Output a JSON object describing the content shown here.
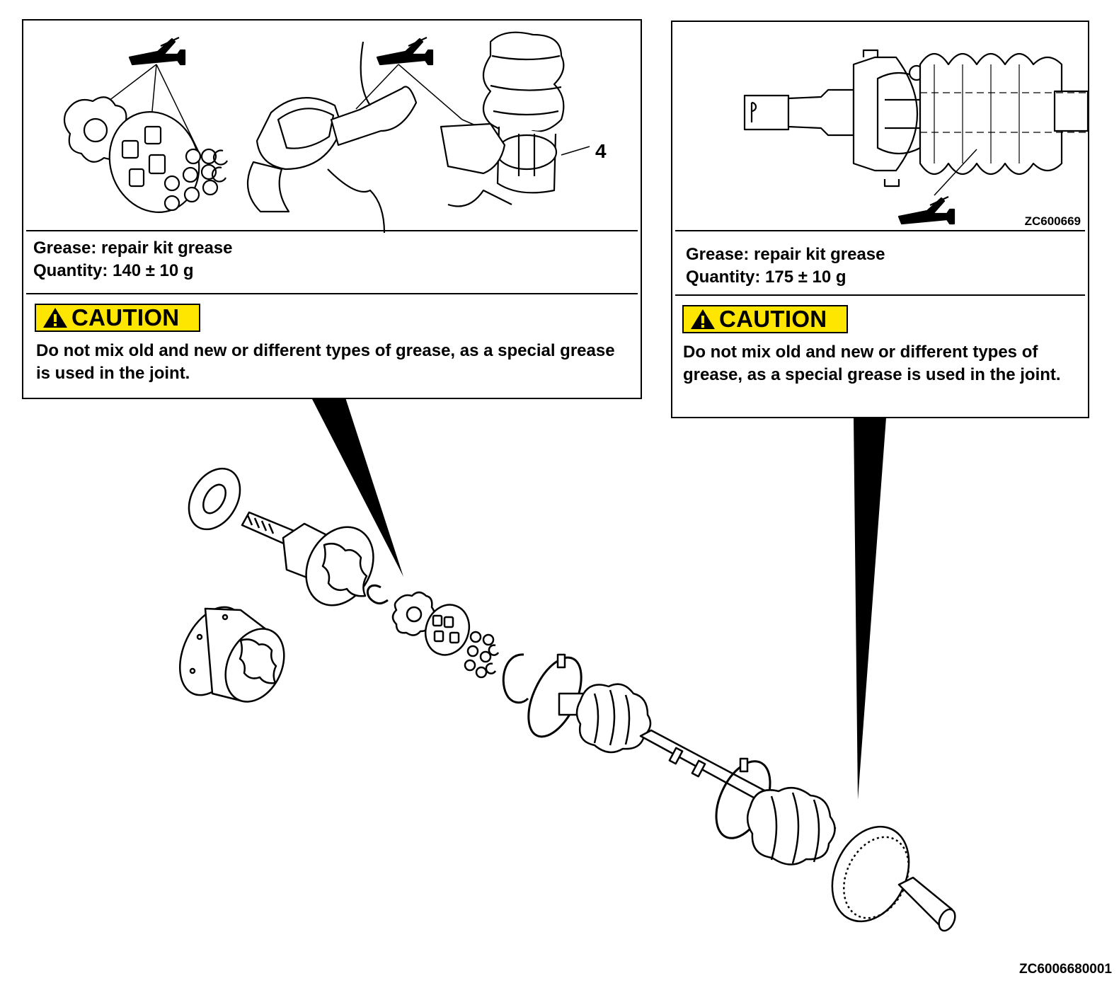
{
  "left_panel": {
    "grease_line": "Grease: repair kit grease",
    "quantity_line": "Quantity: 140 ± 10 g",
    "caution_label": "CAUTION",
    "caution_text": "Do not mix old and new or different types of grease, as a special grease is used in the joint.",
    "callout_number": "4"
  },
  "right_panel": {
    "grease_line": "Grease: repair kit grease",
    "quantity_line": "Quantity: 175 ± 10 g",
    "caution_label": "CAUTION",
    "caution_text": "Do not mix old and new or different types of grease, as a special grease is used in the joint.",
    "figure_code": "ZC600669"
  },
  "figure_code": "ZC6006680001",
  "colors": {
    "caution_yellow": "#ffe600",
    "line": "#000000"
  },
  "icons": [
    "grease-gun-icon",
    "warning-triangle-icon"
  ]
}
